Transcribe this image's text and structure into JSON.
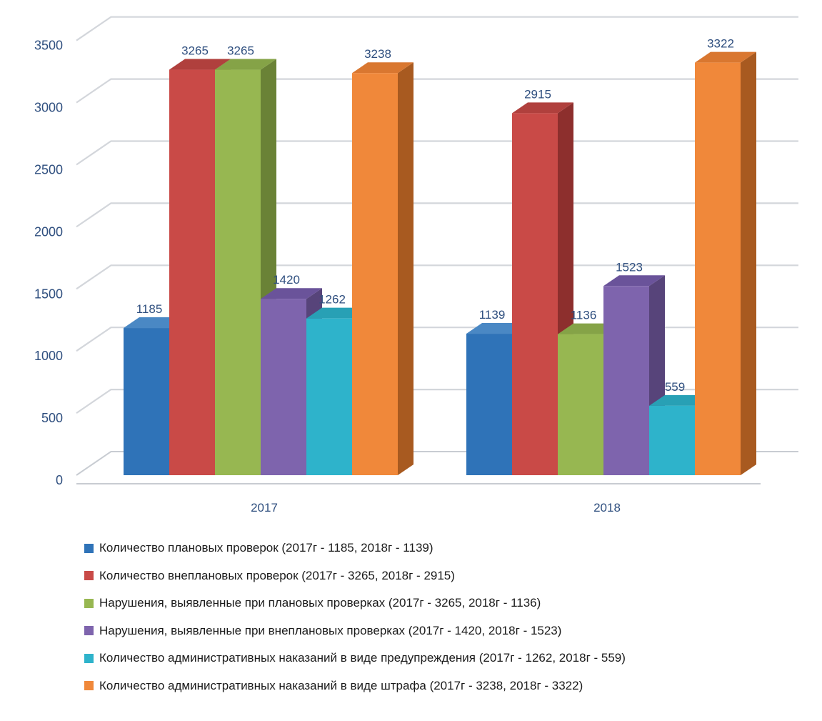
{
  "chart_data": {
    "type": "bar",
    "style": "3d-clustered-column",
    "categories": [
      "2017",
      "2018"
    ],
    "ylim": [
      0,
      3500
    ],
    "yticks": [
      0,
      500,
      1000,
      1500,
      2000,
      2500,
      3000,
      3500
    ],
    "grid": true,
    "legend_position": "bottom",
    "series": [
      {
        "name": "Количество плановых проверок (2017г - 1185, 2018г - 1139)",
        "values": [
          1185,
          1139
        ],
        "color": "#2f73b8",
        "dark": "#1f5286",
        "top": "#4a88c4"
      },
      {
        "name": "Количество внеплановых проверок (2017г - 3265, 2018г - 2915)",
        "values": [
          3265,
          2915
        ],
        "color": "#c94a47",
        "dark": "#8d2f2d",
        "top": "#b0403d"
      },
      {
        "name": "Нарушения, выявленные при плановых проверках (2017г - 3265, 2018г - 1136)",
        "values": [
          3265,
          1136
        ],
        "color": "#97b751",
        "dark": "#6a8236",
        "top": "#85a347"
      },
      {
        "name": "Нарушения, выявленные при внеплановых проверках (2017г - 1420, 2018г - 1523)",
        "values": [
          1420,
          1523
        ],
        "color": "#7e64ad",
        "dark": "#57447a",
        "top": "#6a539a"
      },
      {
        "name": "Количество административных наказаний в виде предупреждения (2017г - 1262, 2018г - 559)",
        "values": [
          1262,
          559
        ],
        "color": "#2eb3cb",
        "dark": "#1f7f91",
        "top": "#28a0b5"
      },
      {
        "name": "Количество административных наказаний в виде штрафа (2017г - 3238, 2018г - 3322)",
        "values": [
          3238,
          3322
        ],
        "color": "#f0883a",
        "dark": "#a85a20",
        "top": "#d97730"
      }
    ]
  }
}
